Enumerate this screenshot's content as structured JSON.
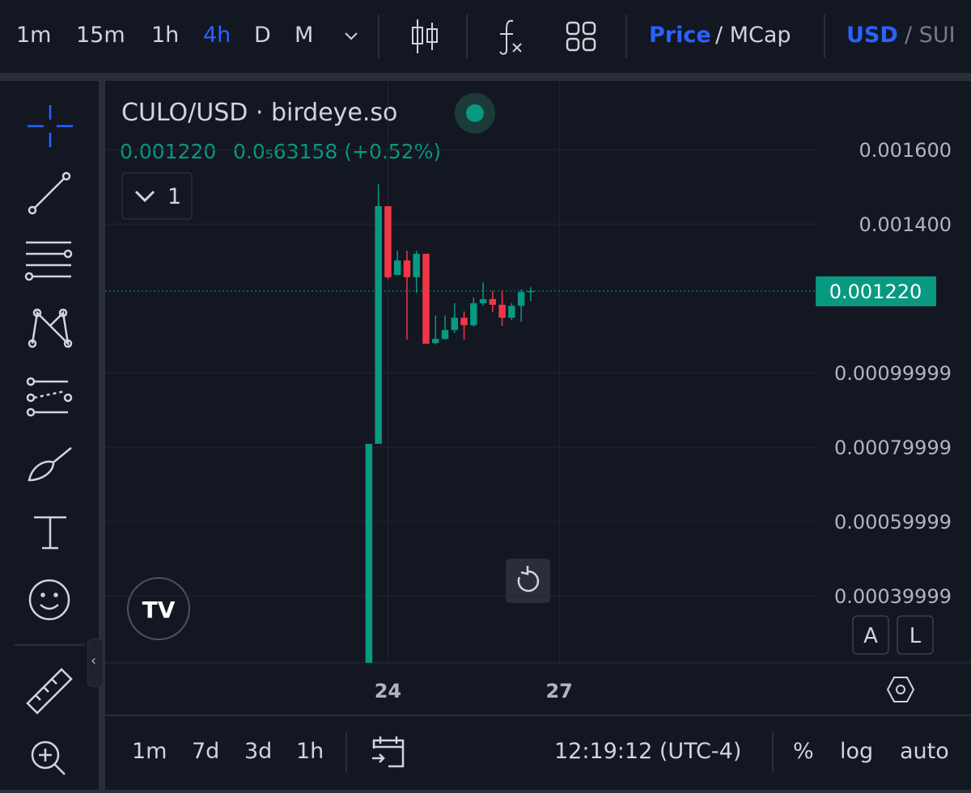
{
  "toolbar": {
    "intervals": [
      "1m",
      "15m",
      "1h",
      "4h",
      "D",
      "M"
    ],
    "active_interval": 3,
    "price": "Price",
    "mcap": "/ MCap",
    "quote": "USD",
    "alt_quote": "/ SUI"
  },
  "chart_data": {
    "type": "candlestick",
    "title": "CULO/USD · birdeye.so",
    "legend_price": "0.001220",
    "legend_change": "0.0₅63158 (+0.52%)",
    "indicators_count": "1",
    "colors": {
      "up": "#089981",
      "down": "#f23645"
    },
    "open": [
      1e-05,
      0.000809,
      0.001448,
      0.001263,
      0.001302,
      0.001257,
      0.00132,
      0.00108,
      0.001091,
      0.001115,
      0.001148,
      0.001128,
      0.001187,
      0.001198,
      0.001183,
      0.001148,
      0.00118,
      0.001217
    ],
    "high": [
      0.000809,
      0.001507,
      0.001448,
      0.001328,
      0.001328,
      0.001328,
      0.00132,
      0.001154,
      0.001154,
      0.001187,
      0.001165,
      0.001202,
      0.001243,
      0.00122,
      0.00122,
      0.001187,
      0.001224,
      0.00123
    ],
    "low": [
      1e-05,
      0.000809,
      0.001252,
      0.001263,
      0.001089,
      0.001215,
      0.001078,
      0.001076,
      0.001089,
      0.001107,
      0.001089,
      0.001124,
      0.00118,
      0.001163,
      0.001126,
      0.001141,
      0.001137,
      0.001193
    ],
    "close": [
      0.000809,
      0.001448,
      0.001257,
      0.001302,
      0.001257,
      0.00132,
      0.001078,
      0.001091,
      0.001115,
      0.001148,
      0.001128,
      0.001187,
      0.001198,
      0.001183,
      0.001148,
      0.00118,
      0.001217,
      0.00122
    ],
    "xlim": [
      -27.7,
      47.1
    ],
    "xticks": [
      {
        "value": 2,
        "label": "24"
      },
      {
        "value": 20,
        "label": "27"
      }
    ],
    "ylim": [
      0.00022,
      0.001785
    ],
    "yticks": [
      {
        "value": 0.0016,
        "label": "0.001600"
      },
      {
        "value": 0.0014,
        "label": "0.001400"
      },
      0.00099999,
      0.00079999,
      0.00059999,
      0.00039999
    ],
    "last_price": {
      "value": 0.00122,
      "label": "0.001220"
    },
    "grid": true,
    "scale_buttons": [
      "A",
      "L"
    ]
  },
  "footer": {
    "ranges": [
      "1m",
      "7d",
      "3d",
      "1h"
    ],
    "time": "12:19:12 (UTC-4)",
    "percent": "%",
    "log": "log",
    "auto": "auto"
  }
}
